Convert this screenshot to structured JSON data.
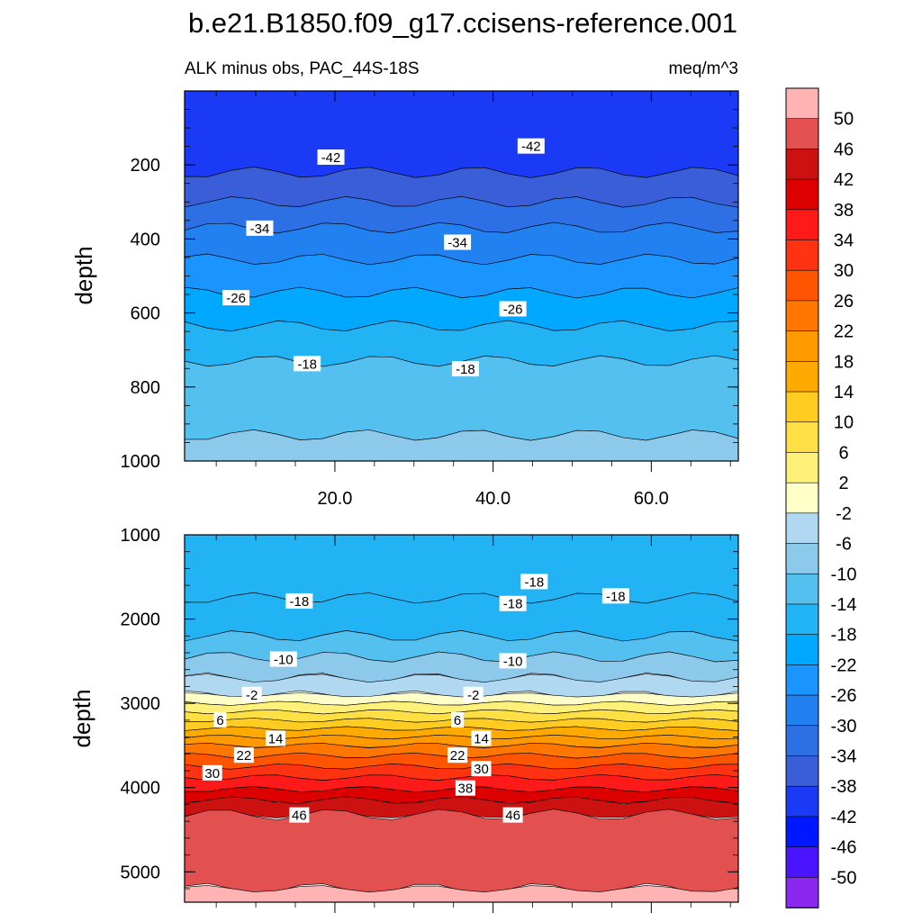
{
  "chart_data": {
    "type": "contour",
    "title": "b.e21.B1850.f09_g17.ccisens-reference.001",
    "subtitle_left": "ALK minus obs, PAC_44S-18S",
    "subtitle_right": "meq/m^3",
    "ylabel": "depth",
    "x_tick_labels": [
      "20.0",
      "40.0",
      "60.0"
    ],
    "x_ticks": [
      20,
      40,
      60
    ],
    "xlim": [
      1,
      71
    ],
    "colorbar": {
      "levels": [
        "50",
        "46",
        "42",
        "38",
        "34",
        "30",
        "26",
        "22",
        "18",
        "14",
        "10",
        "6",
        "2",
        "-2",
        "-6",
        "-10",
        "-14",
        "-18",
        "-22",
        "-26",
        "-30",
        "-34",
        "-38",
        "-42",
        "-46",
        "-50"
      ],
      "colors": [
        "#ffb3b3",
        "#e35050",
        "#cc1111",
        "#dd0000",
        "#ff1a1a",
        "#ff3311",
        "#ff5500",
        "#ff7700",
        "#ff9900",
        "#ffaa00",
        "#ffcc22",
        "#ffe044",
        "#fff07a",
        "#ffffc8",
        "#b0d8f0",
        "#8cc9ea",
        "#54c0f0",
        "#22b3f5",
        "#00a8ff",
        "#1a94ff",
        "#2281f0",
        "#2d70e6",
        "#3a5ed8",
        "#1a3af5",
        "#0018ff",
        "#4a14ff",
        "#8a28f0"
      ]
    },
    "panels": [
      {
        "name": "upper",
        "ylim": [
          0,
          1000
        ],
        "y_ticks": [
          200,
          400,
          600,
          800,
          1000
        ],
        "y_tick_labels": [
          "200",
          "400",
          "600",
          "800",
          "1000"
        ],
        "bands": [
          {
            "top": 0,
            "bottom": 220,
            "value": -42,
            "color": "#1a3af5"
          },
          {
            "top": 220,
            "bottom": 300,
            "value": -38,
            "color": "#3a5ed8"
          },
          {
            "top": 300,
            "bottom": 370,
            "value": -34,
            "color": "#2d70e6"
          },
          {
            "top": 370,
            "bottom": 455,
            "value": -30,
            "color": "#2281f0"
          },
          {
            "top": 455,
            "bottom": 545,
            "value": -26,
            "color": "#1a94ff"
          },
          {
            "top": 545,
            "bottom": 635,
            "value": -22,
            "color": "#00a8ff"
          },
          {
            "top": 635,
            "bottom": 730,
            "value": -18,
            "color": "#22b3f5"
          },
          {
            "top": 730,
            "bottom": 930,
            "value": -14,
            "color": "#54c0f0"
          },
          {
            "top": 930,
            "bottom": 1000,
            "value": -10,
            "color": "#8cc9ea"
          }
        ],
        "contour_labels": [
          {
            "text": "-42",
            "x": 19.5,
            "y": 180
          },
          {
            "text": "-42",
            "x": 44.8,
            "y": 150
          },
          {
            "text": "-34",
            "x": 10.5,
            "y": 372
          },
          {
            "text": "-34",
            "x": 35.5,
            "y": 410
          },
          {
            "text": "-26",
            "x": 7.5,
            "y": 560
          },
          {
            "text": "-26",
            "x": 42.5,
            "y": 590
          },
          {
            "text": "-18",
            "x": 16.5,
            "y": 738
          },
          {
            "text": "-18",
            "x": 36.5,
            "y": 752
          }
        ]
      },
      {
        "name": "lower",
        "ylim": [
          1000,
          5360
        ],
        "y_ticks": [
          1000,
          2000,
          3000,
          4000,
          5000
        ],
        "y_tick_labels": [
          "1000",
          "2000",
          "3000",
          "4000",
          "5000"
        ],
        "bands": [
          {
            "top": 1000,
            "bottom": 1750,
            "value": -18,
            "color": "#22b3f5"
          },
          {
            "top": 1750,
            "bottom": 2200,
            "value": -14,
            "color": "#22b3f5"
          },
          {
            "top": 2200,
            "bottom": 2450,
            "value": -10,
            "color": "#54c0f0"
          },
          {
            "top": 2450,
            "bottom": 2700,
            "value": -6,
            "color": "#8cc9ea"
          },
          {
            "top": 2700,
            "bottom": 2900,
            "value": -2,
            "color": "#b0d8f0"
          },
          {
            "top": 2900,
            "bottom": 3000,
            "value": 2,
            "color": "#ffffc8"
          },
          {
            "top": 3000,
            "bottom": 3100,
            "value": 6,
            "color": "#fff07a"
          },
          {
            "top": 3100,
            "bottom": 3200,
            "value": 10,
            "color": "#ffe044"
          },
          {
            "top": 3200,
            "bottom": 3300,
            "value": 14,
            "color": "#ffcc22"
          },
          {
            "top": 3300,
            "bottom": 3400,
            "value": 18,
            "color": "#ffaa00"
          },
          {
            "top": 3400,
            "bottom": 3500,
            "value": 22,
            "color": "#ff9900"
          },
          {
            "top": 3500,
            "bottom": 3620,
            "value": 26,
            "color": "#ff7700"
          },
          {
            "top": 3620,
            "bottom": 3750,
            "value": 30,
            "color": "#ff5500"
          },
          {
            "top": 3750,
            "bottom": 3880,
            "value": 34,
            "color": "#ff3311"
          },
          {
            "top": 3880,
            "bottom": 4020,
            "value": 38,
            "color": "#ff1a1a"
          },
          {
            "top": 4020,
            "bottom": 4150,
            "value": 42,
            "color": "#dd0000"
          },
          {
            "top": 4150,
            "bottom": 4320,
            "value": 46,
            "color": "#cc1111"
          },
          {
            "top": 4320,
            "bottom": 5200,
            "value": 50,
            "color": "#e35050"
          },
          {
            "top": 5200,
            "bottom": 5360,
            "value": 54,
            "color": "#ffb3b3"
          }
        ],
        "contour_labels": [
          {
            "text": "-18",
            "x": 45.2,
            "y": 1560
          },
          {
            "text": "-18",
            "x": 15.5,
            "y": 1790
          },
          {
            "text": "-18",
            "x": 42.5,
            "y": 1820
          },
          {
            "text": "-18",
            "x": 55.5,
            "y": 1730
          },
          {
            "text": "-10",
            "x": 13.5,
            "y": 2480
          },
          {
            "text": "-10",
            "x": 42.5,
            "y": 2500
          },
          {
            "text": "-2",
            "x": 9.5,
            "y": 2900
          },
          {
            "text": "-2",
            "x": 37.5,
            "y": 2900
          },
          {
            "text": "6",
            "x": 5.5,
            "y": 3200
          },
          {
            "text": "6",
            "x": 35.5,
            "y": 3200
          },
          {
            "text": "14",
            "x": 12.5,
            "y": 3420
          },
          {
            "text": "14",
            "x": 38.5,
            "y": 3420
          },
          {
            "text": "22",
            "x": 8.5,
            "y": 3620
          },
          {
            "text": "22",
            "x": 35.5,
            "y": 3620
          },
          {
            "text": "30",
            "x": 4.5,
            "y": 3830
          },
          {
            "text": "30",
            "x": 38.5,
            "y": 3780
          },
          {
            "text": "38",
            "x": 36.5,
            "y": 4010
          },
          {
            "text": "46",
            "x": 15.5,
            "y": 4330
          },
          {
            "text": "46",
            "x": 42.5,
            "y": 4330
          }
        ]
      }
    ]
  }
}
